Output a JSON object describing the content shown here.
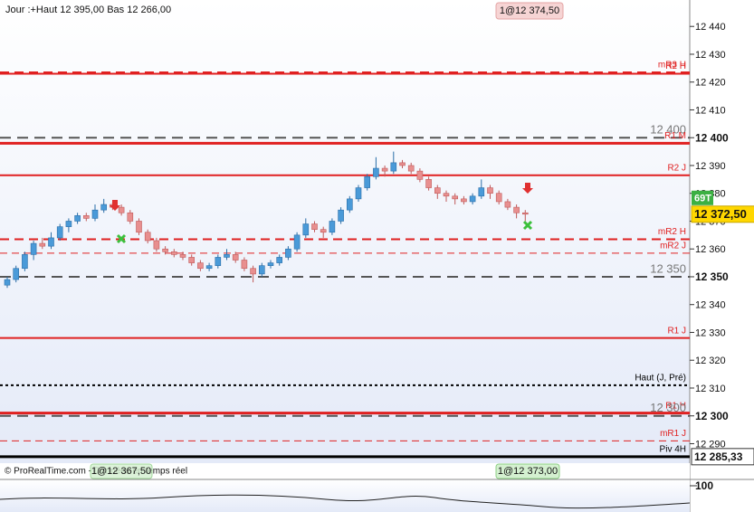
{
  "chart_data": {
    "type": "candlestick",
    "header": "Jour :+Haut 12 395,00 Bas 12 266,00",
    "footer": "© ProRealTime.com - Données en temps réel",
    "order_top": "1@12 374,50",
    "order_bottom_left": "1@12 367,50",
    "order_bottom_right": "1@12 373,00",
    "ylim": [
      12283,
      12449.5
    ],
    "yticks": [
      {
        "value": 12290,
        "label": "12 290"
      },
      {
        "value": 12300,
        "label": "12 300"
      },
      {
        "value": 12310,
        "label": "12 310"
      },
      {
        "value": 12320,
        "label": "12 320"
      },
      {
        "value": 12330,
        "label": "12 330"
      },
      {
        "value": 12340,
        "label": "12 340"
      },
      {
        "value": 12350,
        "label": "12 350"
      },
      {
        "value": 12360,
        "label": "12 360"
      },
      {
        "value": 12370,
        "label": "12 370"
      },
      {
        "value": 12380,
        "label": "12 380"
      },
      {
        "value": 12390,
        "label": "12 390"
      },
      {
        "value": 12400,
        "label": "12 400"
      },
      {
        "value": 12410,
        "label": "12 410"
      },
      {
        "value": 12420,
        "label": "12 420"
      },
      {
        "value": 12430,
        "label": "12 430"
      },
      {
        "value": 12440,
        "label": "12 440"
      }
    ],
    "levels": [
      {
        "name": "mR3 H",
        "value": 12423.5,
        "color": "#e02020",
        "style": "dashed"
      },
      {
        "name": "R2 H",
        "value": 12423,
        "color": "#e02020",
        "style": "solid"
      },
      {
        "name": "12 400",
        "value": 12400,
        "color": "#555555",
        "style": "gray"
      },
      {
        "name": "R1 M",
        "value": 12398,
        "color": "#e02020",
        "style": "thick"
      },
      {
        "name": "R2 J",
        "value": 12386.5,
        "color": "#e02020",
        "style": "solid"
      },
      {
        "name": "mR2 H",
        "value": 12363.5,
        "color": "#e02020",
        "style": "dashed"
      },
      {
        "name": "mR2 J",
        "value": 12358.5,
        "color": "#e02020",
        "style": "thin-dashed"
      },
      {
        "name": "12 350",
        "value": 12350,
        "color": "#555555",
        "style": "gray"
      },
      {
        "name": "R1 J",
        "value": 12328,
        "color": "#e02020",
        "style": "solid"
      },
      {
        "name": "Haut (J, Pré)",
        "value": 12311,
        "color": "#000000",
        "style": "dotted"
      },
      {
        "name": "R1 H",
        "value": 12301,
        "color": "#e02020",
        "style": "thick"
      },
      {
        "name": "12 300",
        "value": 12300,
        "color": "#555555",
        "style": "gray"
      },
      {
        "name": "mR1 J",
        "value": 12291,
        "color": "#e02020",
        "style": "thin-dashed"
      },
      {
        "name": "Piv 4H",
        "value": 12285.33,
        "value_label": "12 285,33",
        "color": "#000000",
        "style": "thick"
      }
    ],
    "last_price": 12372.5,
    "last_price_label": "12 372,50",
    "countdown": "69T",
    "up_color": "#4a9ad8",
    "down_color": "#e88f8f",
    "ohlc": [
      [
        12347,
        12350,
        12346,
        12349
      ],
      [
        12349,
        12354,
        12348,
        12353
      ],
      [
        12353,
        12359,
        12352,
        12358
      ],
      [
        12358,
        12363,
        12356,
        12362
      ],
      [
        12362,
        12364,
        12360,
        12361
      ],
      [
        12361,
        12366,
        12360,
        12364
      ],
      [
        12364,
        12369,
        12363,
        12368
      ],
      [
        12368,
        12371,
        12366,
        12370
      ],
      [
        12370,
        12373,
        12369,
        12372
      ],
      [
        12372,
        12373,
        12370,
        12371
      ],
      [
        12371,
        12376,
        12370,
        12374
      ],
      [
        12374,
        12378,
        12373,
        12376
      ],
      [
        12376,
        12377,
        12374,
        12375
      ],
      [
        12375,
        12376,
        12372,
        12373
      ],
      [
        12373,
        12374,
        12369,
        12370
      ],
      [
        12370,
        12371,
        12365,
        12366
      ],
      [
        12366,
        12367,
        12362,
        12363
      ],
      [
        12363,
        12364,
        12359,
        12360
      ],
      [
        12360,
        12361,
        12358,
        12359
      ],
      [
        12359,
        12360,
        12357,
        12358
      ],
      [
        12358,
        12359,
        12356,
        12357
      ],
      [
        12357,
        12358,
        12354,
        12355
      ],
      [
        12355,
        12356,
        12352,
        12353
      ],
      [
        12353,
        12355,
        12352,
        12354
      ],
      [
        12354,
        12358,
        12353,
        12357
      ],
      [
        12357,
        12360,
        12356,
        12358
      ],
      [
        12358,
        12359,
        12355,
        12356
      ],
      [
        12356,
        12357,
        12352,
        12353
      ],
      [
        12353,
        12354,
        12348,
        12351
      ],
      [
        12351,
        12355,
        12350,
        12354
      ],
      [
        12354,
        12356,
        12353,
        12355
      ],
      [
        12355,
        12358,
        12354,
        12357
      ],
      [
        12357,
        12361,
        12356,
        12360
      ],
      [
        12360,
        12366,
        12359,
        12365
      ],
      [
        12365,
        12371,
        12364,
        12369
      ],
      [
        12369,
        12370,
        12366,
        12367
      ],
      [
        12367,
        12368,
        12364,
        12366
      ],
      [
        12366,
        12371,
        12365,
        12370
      ],
      [
        12370,
        12375,
        12369,
        12374
      ],
      [
        12374,
        12379,
        12373,
        12378
      ],
      [
        12378,
        12383,
        12377,
        12382
      ],
      [
        12382,
        12387,
        12381,
        12386
      ],
      [
        12386,
        12393,
        12385,
        12389
      ],
      [
        12389,
        12390,
        12386,
        12388
      ],
      [
        12388,
        12395,
        12387,
        12391
      ],
      [
        12391,
        12392,
        12389,
        12390
      ],
      [
        12390,
        12391,
        12387,
        12388
      ],
      [
        12388,
        12389,
        12384,
        12385
      ],
      [
        12385,
        12386,
        12381,
        12382
      ],
      [
        12382,
        12383,
        12378,
        12380
      ],
      [
        12380,
        12381,
        12377,
        12379
      ],
      [
        12379,
        12380,
        12376,
        12378
      ],
      [
        12378,
        12379,
        12376,
        12377
      ],
      [
        12377,
        12380,
        12376,
        12379
      ],
      [
        12379,
        12385,
        12378,
        12382
      ],
      [
        12382,
        12383,
        12378,
        12380
      ],
      [
        12380,
        12381,
        12376,
        12377
      ],
      [
        12377,
        12378,
        12374,
        12375
      ],
      [
        12375,
        12376,
        12371,
        12373
      ],
      [
        12373,
        12374,
        12370,
        12372.5
      ]
    ],
    "oscillator_label": "100"
  }
}
